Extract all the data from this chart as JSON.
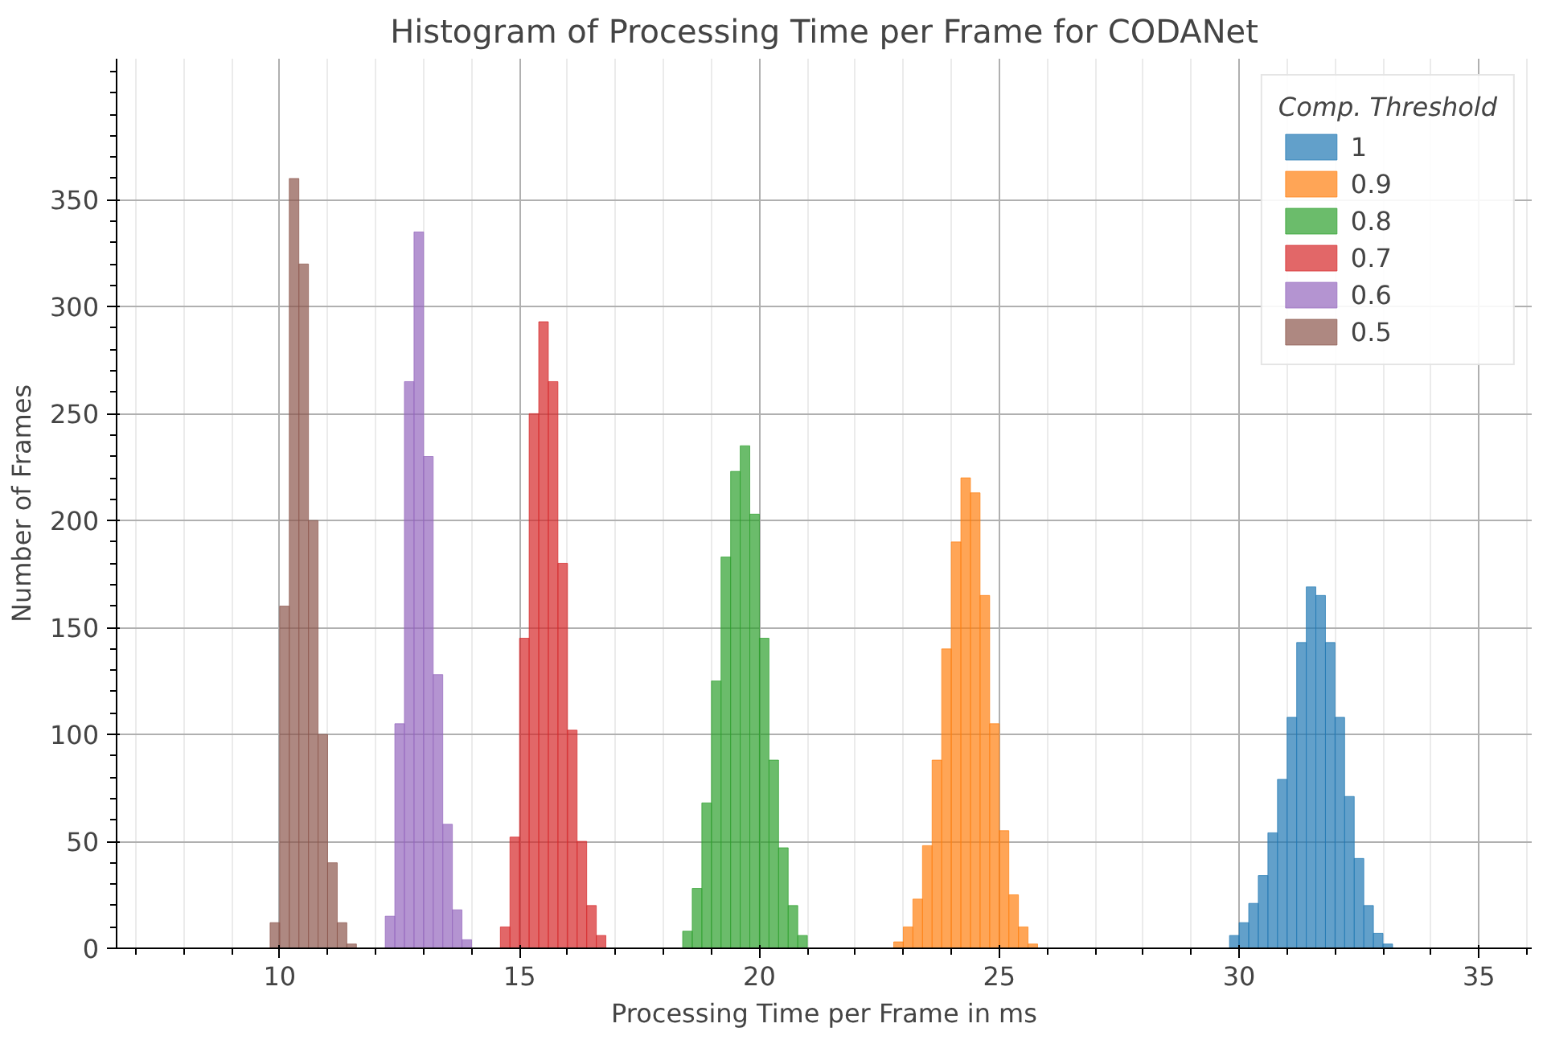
{
  "chart_data": {
    "type": "histogram",
    "title": "Histogram of Processing Time per Frame for CODANet",
    "xlabel": "Processing Time per Frame in ms",
    "ylabel": "Number of Frames",
    "legend_title": "Comp. Threshold",
    "legend": "top right",
    "grid": true,
    "xlim": [
      6.6,
      36.1
    ],
    "xticks": [
      10,
      15,
      20,
      25,
      30,
      35
    ],
    "ylim": [
      0,
      416
    ],
    "yticks": [
      0,
      50,
      100,
      150,
      200,
      250,
      300,
      350
    ],
    "bins": [
      9.8,
      10,
      10.2,
      10.4,
      10.6,
      10.8,
      11,
      11.2,
      11.4,
      11.6,
      11.8,
      12,
      12.2,
      12.4,
      12.6,
      12.8,
      13,
      13.2,
      13.4,
      13.6,
      13.8,
      14,
      14.2,
      14.4,
      14.6,
      14.8,
      15,
      15.2,
      15.4,
      15.6,
      15.8,
      16,
      16.2,
      16.4,
      16.6,
      16.8,
      17,
      17.2,
      17.4,
      17.6,
      17.8,
      18,
      18.2,
      18.4,
      18.6,
      18.8,
      19,
      19.2,
      19.4,
      19.6,
      19.8,
      20,
      20.2,
      20.4,
      20.6,
      20.8,
      21,
      21.2,
      21.4,
      21.6,
      21.8,
      22,
      22.2,
      22.4,
      22.6,
      22.8,
      23,
      23.2,
      23.4,
      23.6,
      23.8,
      24,
      24.2,
      24.4,
      24.6,
      24.8,
      25,
      25.2,
      25.4,
      25.6,
      25.8,
      26,
      26.2,
      26.4,
      26.6,
      26.8,
      27,
      27.2,
      27.4,
      27.6,
      27.8,
      28,
      28.2,
      28.4,
      28.6,
      28.8,
      29,
      29.2,
      29.4,
      29.6,
      29.8,
      30,
      30.2,
      30.4,
      30.6,
      30.8,
      31,
      31.2,
      31.4,
      31.6,
      31.8,
      32,
      32.2,
      32.4,
      32.6,
      32.8,
      33,
      33.2
    ],
    "series": [
      {
        "name": "1",
        "color": "#1f77b4",
        "values": [
          null,
          null,
          null,
          null,
          null,
          null,
          null,
          null,
          null,
          null,
          null,
          null,
          null,
          null,
          null,
          null,
          null,
          null,
          null,
          null,
          null,
          null,
          null,
          null,
          null,
          null,
          null,
          null,
          null,
          null,
          null,
          null,
          null,
          null,
          null,
          null,
          null,
          null,
          null,
          null,
          null,
          null,
          null,
          null,
          null,
          null,
          null,
          null,
          null,
          null,
          null,
          null,
          null,
          null,
          null,
          null,
          null,
          null,
          null,
          null,
          null,
          null,
          null,
          null,
          null,
          null,
          null,
          null,
          null,
          null,
          null,
          null,
          null,
          null,
          null,
          null,
          null,
          null,
          null,
          null,
          null,
          null,
          null,
          null,
          null,
          null,
          null,
          null,
          null,
          null,
          null,
          null,
          null,
          null,
          null,
          null,
          null,
          null,
          null,
          null,
          6,
          12,
          21,
          34,
          54,
          79,
          108,
          143,
          169,
          165,
          143,
          108,
          71,
          42,
          20,
          7,
          2
        ]
      },
      {
        "name": "0.9",
        "color": "#ff7f0e",
        "values": [
          null,
          null,
          null,
          null,
          null,
          null,
          null,
          null,
          null,
          null,
          null,
          null,
          null,
          null,
          null,
          null,
          null,
          null,
          null,
          null,
          null,
          null,
          null,
          null,
          null,
          null,
          null,
          null,
          null,
          null,
          null,
          null,
          null,
          null,
          null,
          null,
          null,
          null,
          null,
          null,
          null,
          null,
          null,
          null,
          null,
          null,
          null,
          null,
          null,
          null,
          null,
          null,
          null,
          null,
          null,
          null,
          null,
          null,
          null,
          null,
          null,
          null,
          null,
          null,
          null,
          3,
          10,
          23,
          48,
          88,
          140,
          190,
          220,
          213,
          165,
          105,
          55,
          25,
          10,
          2,
          null,
          null,
          null,
          null,
          null,
          null,
          null,
          null,
          null,
          null,
          null,
          null,
          null,
          null,
          null,
          null,
          null,
          null,
          null,
          null,
          null,
          null,
          null,
          null,
          null,
          null,
          null,
          null,
          null,
          null,
          null,
          null,
          null,
          null,
          null,
          null,
          null
        ]
      },
      {
        "name": "0.8",
        "color": "#2ca02c",
        "values": [
          null,
          null,
          null,
          null,
          null,
          null,
          null,
          null,
          null,
          null,
          null,
          null,
          null,
          null,
          null,
          null,
          null,
          null,
          null,
          null,
          null,
          null,
          null,
          null,
          null,
          null,
          null,
          null,
          null,
          null,
          null,
          null,
          null,
          null,
          null,
          null,
          null,
          null,
          null,
          null,
          null,
          null,
          null,
          8,
          28,
          68,
          125,
          183,
          223,
          235,
          203,
          145,
          88,
          47,
          20,
          6,
          null,
          null,
          null,
          null,
          null,
          null,
          null,
          null,
          null,
          null,
          null,
          null,
          null,
          null,
          null,
          null,
          null,
          null,
          null,
          null,
          null,
          null,
          null,
          null,
          null,
          null,
          null,
          null,
          null,
          null,
          null,
          null,
          null,
          null,
          null,
          null,
          null,
          null,
          null,
          null,
          null,
          null,
          null,
          null,
          null,
          null,
          null,
          null,
          null,
          null,
          null,
          null,
          null,
          null,
          null,
          null,
          null,
          null,
          null,
          null,
          null
        ]
      },
      {
        "name": "0.7",
        "color": "#d62728",
        "values": [
          null,
          null,
          null,
          null,
          null,
          null,
          null,
          null,
          null,
          null,
          null,
          null,
          null,
          null,
          null,
          null,
          null,
          null,
          null,
          null,
          null,
          null,
          null,
          null,
          10,
          52,
          145,
          250,
          293,
          265,
          180,
          102,
          50,
          20,
          6,
          null,
          null,
          null,
          null,
          null,
          null,
          null,
          null,
          null,
          null,
          null,
          null,
          null,
          null,
          null,
          null,
          null,
          null,
          null,
          null,
          null,
          null,
          null,
          null,
          null,
          null,
          null,
          null,
          null,
          null,
          null,
          null,
          null,
          null,
          null,
          null,
          null,
          null,
          null,
          null,
          null,
          null,
          null,
          null,
          null,
          null,
          null,
          null,
          null,
          null,
          null,
          null,
          null,
          null,
          null,
          null,
          null,
          null,
          null,
          null,
          null,
          null,
          null,
          null,
          null,
          null,
          null,
          null,
          null,
          null,
          null,
          null,
          null,
          null,
          null,
          null,
          null,
          null,
          null,
          null,
          null,
          null
        ]
      },
      {
        "name": "0.6",
        "color": "#9467bd",
        "values": [
          null,
          null,
          null,
          null,
          null,
          null,
          null,
          null,
          null,
          null,
          null,
          null,
          15,
          105,
          265,
          335,
          230,
          128,
          58,
          18,
          4,
          null,
          null,
          null,
          null,
          null,
          null,
          null,
          null,
          null,
          null,
          null,
          null,
          null,
          null,
          null,
          null,
          null,
          null,
          null,
          null,
          null,
          null,
          null,
          null,
          null,
          null,
          null,
          null,
          null,
          null,
          null,
          null,
          null,
          null,
          null,
          null,
          null,
          null,
          null,
          null,
          null,
          null,
          null,
          null,
          null,
          null,
          null,
          null,
          null,
          null,
          null,
          null,
          null,
          null,
          null,
          null,
          null,
          null,
          null,
          null,
          null,
          null,
          null,
          null,
          null,
          null,
          null,
          null,
          null,
          null,
          null,
          null,
          null,
          null,
          null,
          null,
          null,
          null,
          null,
          null,
          null,
          null,
          null,
          null,
          null,
          null,
          null,
          null,
          null,
          null,
          null,
          null,
          null,
          null,
          null,
          null
        ]
      },
      {
        "name": "0.5",
        "color": "#8c564b",
        "values": [
          12,
          160,
          360,
          320,
          200,
          100,
          40,
          12,
          2,
          null,
          null,
          null,
          null,
          null,
          null,
          null,
          null,
          null,
          null,
          null,
          null,
          null,
          null,
          null,
          null,
          null,
          null,
          null,
          null,
          null,
          null,
          null,
          null,
          null,
          null,
          null,
          null,
          null,
          null,
          null,
          null,
          null,
          null,
          null,
          null,
          null,
          null,
          null,
          null,
          null,
          null,
          null,
          null,
          null,
          null,
          null,
          null,
          null,
          null,
          null,
          null,
          null,
          null,
          null,
          null,
          null,
          null,
          null,
          null,
          null,
          null,
          null,
          null,
          null,
          null,
          null,
          null,
          null,
          null,
          null,
          null,
          null,
          null,
          null,
          null,
          null,
          null,
          null,
          null,
          null,
          null,
          null,
          null,
          null,
          null,
          null,
          null,
          null,
          null,
          null,
          null,
          null,
          null,
          null,
          null,
          null,
          null,
          null,
          null,
          null,
          null,
          null,
          null,
          null,
          null,
          null,
          null
        ]
      }
    ]
  }
}
